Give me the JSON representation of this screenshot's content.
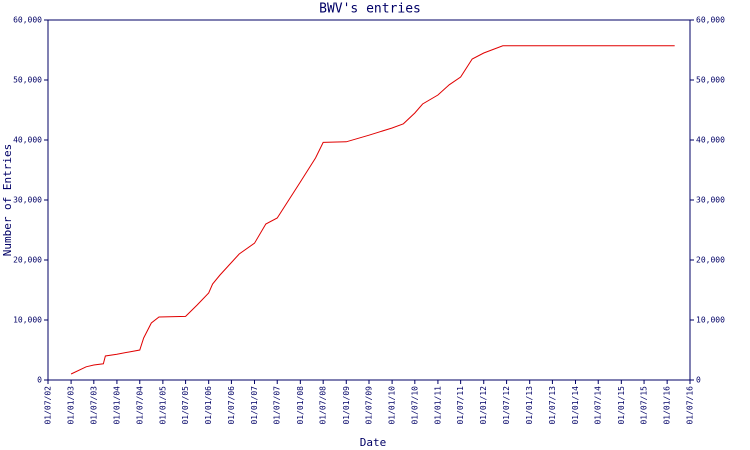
{
  "chart_data": {
    "type": "line",
    "title": "BWV's entries",
    "xlabel": "Date",
    "ylabel": "Number of Entries",
    "color": "#e00000",
    "x": [
      "2003-01-01",
      "2003-05-01",
      "2003-07-01",
      "2003-09-15",
      "2003-10-01",
      "2004-01-01",
      "2004-07-01",
      "2004-08-01",
      "2004-10-01",
      "2004-12-01",
      "2005-07-01",
      "2005-10-01",
      "2006-01-01",
      "2006-02-01",
      "2006-04-01",
      "2006-09-01",
      "2007-01-01",
      "2007-04-01",
      "2007-07-01",
      "2008-01-01",
      "2008-05-01",
      "2008-07-01",
      "2009-01-01",
      "2009-07-01",
      "2010-01-01",
      "2010-04-01",
      "2010-07-01",
      "2010-09-01",
      "2011-01-01",
      "2011-04-01",
      "2011-07-01",
      "2011-10-01",
      "2012-01-01",
      "2012-06-01",
      "2016-03-01"
    ],
    "values": [
      1000,
      2200,
      2500,
      2700,
      4000,
      4300,
      5000,
      7000,
      9500,
      10500,
      10600,
      12500,
      14500,
      16000,
      17500,
      21000,
      22800,
      26000,
      27000,
      33000,
      37000,
      39600,
      39700,
      40800,
      42000,
      42700,
      44500,
      46000,
      47500,
      49200,
      50500,
      53500,
      54500,
      55700,
      55700
    ],
    "xlim": [
      "2002-07-01",
      "2016-07-01"
    ],
    "xticks": [
      {
        "value": "2002-07-01",
        "label": "01/07/02"
      },
      {
        "value": "2003-01-01",
        "label": "01/01/03"
      },
      {
        "value": "2003-07-01",
        "label": "01/07/03"
      },
      {
        "value": "2004-01-01",
        "label": "01/01/04"
      },
      {
        "value": "2004-07-01",
        "label": "01/07/04"
      },
      {
        "value": "2005-01-01",
        "label": "01/01/05"
      },
      {
        "value": "2005-07-01",
        "label": "01/07/05"
      },
      {
        "value": "2006-01-01",
        "label": "01/01/06"
      },
      {
        "value": "2006-07-01",
        "label": "01/07/06"
      },
      {
        "value": "2007-01-01",
        "label": "01/01/07"
      },
      {
        "value": "2007-07-01",
        "label": "01/07/07"
      },
      {
        "value": "2008-01-01",
        "label": "01/01/08"
      },
      {
        "value": "2008-07-01",
        "label": "01/07/08"
      },
      {
        "value": "2009-01-01",
        "label": "01/01/09"
      },
      {
        "value": "2009-07-01",
        "label": "01/07/09"
      },
      {
        "value": "2010-01-01",
        "label": "01/01/10"
      },
      {
        "value": "2010-07-01",
        "label": "01/07/10"
      },
      {
        "value": "2011-01-01",
        "label": "01/01/11"
      },
      {
        "value": "2011-07-01",
        "label": "01/07/11"
      },
      {
        "value": "2012-01-01",
        "label": "01/01/12"
      },
      {
        "value": "2012-07-01",
        "label": "01/07/12"
      },
      {
        "value": "2013-01-01",
        "label": "01/01/13"
      },
      {
        "value": "2013-07-01",
        "label": "01/07/13"
      },
      {
        "value": "2014-01-01",
        "label": "01/01/14"
      },
      {
        "value": "2014-07-01",
        "label": "01/07/14"
      },
      {
        "value": "2015-01-01",
        "label": "01/01/15"
      },
      {
        "value": "2015-07-01",
        "label": "01/07/15"
      },
      {
        "value": "2016-01-01",
        "label": "01/01/16"
      },
      {
        "value": "2016-07-01",
        "label": "01/07/16"
      }
    ],
    "ylim": [
      0,
      60000
    ],
    "yticks": [
      0,
      {
        "value": 10000,
        "label": "10,000"
      },
      {
        "value": 20000,
        "label": "20,000"
      },
      {
        "value": 30000,
        "label": "30,000"
      },
      {
        "value": 40000,
        "label": "40,000"
      },
      {
        "value": 50000,
        "label": "50,000"
      },
      {
        "value": 60000,
        "label": "60,000"
      }
    ]
  }
}
